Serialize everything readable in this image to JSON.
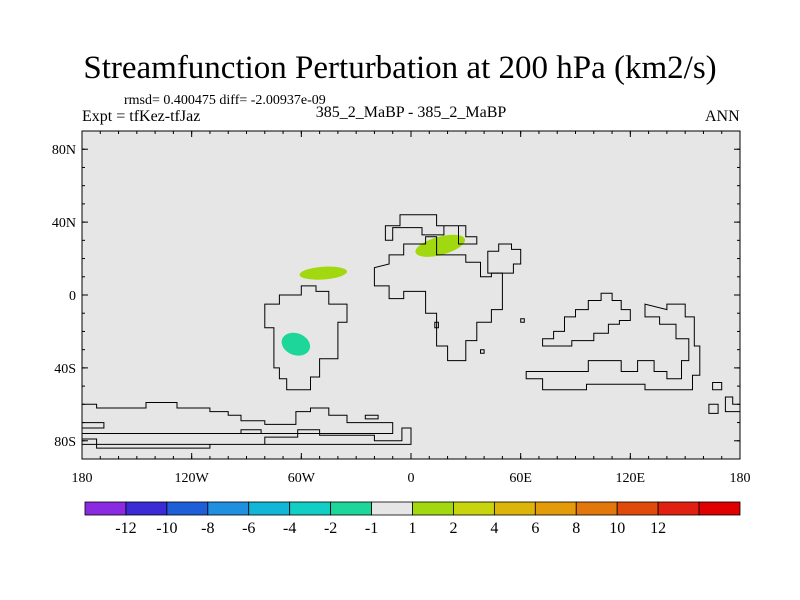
{
  "chart_data": {
    "type": "heatmap",
    "title": "Streamfunction Perturbation at 200 hPa (km2/s)",
    "stats_text": "rmsd= 0.400475 diff= -2.00937e-09",
    "left_label": "Expt = tfKez-tfJaz",
    "center_label": "385_2_MaBP - 385_2_MaBP",
    "right_label": "ANN",
    "x_axis": {
      "min": -180,
      "max": 180,
      "ticks": [
        {
          "value": -180,
          "label": "180"
        },
        {
          "value": -120,
          "label": "120W"
        },
        {
          "value": -60,
          "label": "60W"
        },
        {
          "value": 0,
          "label": "0"
        },
        {
          "value": 60,
          "label": "60E"
        },
        {
          "value": 120,
          "label": "120E"
        },
        {
          "value": 180,
          "label": "180"
        }
      ]
    },
    "y_axis": {
      "min": -90,
      "max": 90,
      "ticks": [
        {
          "value": 80,
          "label": "80N"
        },
        {
          "value": 40,
          "label": "40N"
        },
        {
          "value": 0,
          "label": "0"
        },
        {
          "value": -40,
          "label": "40S"
        },
        {
          "value": -80,
          "label": "80S"
        }
      ]
    },
    "background_color": "#e6e6e6",
    "colorbar": {
      "colors": [
        "#8a2be2",
        "#3a2bd6",
        "#1e5fd8",
        "#1f8fe0",
        "#12b6d6",
        "#12cfc6",
        "#1cd69a",
        "#e6e6e6",
        "#a2d80f",
        "#c8d40d",
        "#dcb40a",
        "#e49b0a",
        "#e2780b",
        "#e04a0b",
        "#e02010",
        "#e00000"
      ],
      "labels": [
        "-12",
        "-10",
        "-8",
        "-6",
        "-4",
        "-2",
        "-1",
        "1",
        "2",
        "4",
        "6",
        "8",
        "10",
        "12"
      ]
    },
    "anomalies": [
      {
        "lon": 16,
        "lat": 27,
        "rlon": 14,
        "rlat": 5,
        "angle": -15,
        "color": "#a2d80f"
      },
      {
        "lon": -48,
        "lat": 12,
        "rlon": 13,
        "rlat": 3.5,
        "angle": -4,
        "color": "#a2d80f"
      },
      {
        "lon": -63,
        "lat": -27,
        "rlon": 8,
        "rlat": 6,
        "angle": 20,
        "color": "#1cd69a"
      }
    ],
    "coastlines": [
      [
        [
          -180,
          -60
        ],
        [
          -172,
          -60
        ],
        [
          -172,
          -62
        ],
        [
          -145,
          -62
        ],
        [
          -145,
          -59
        ],
        [
          -128,
          -59
        ],
        [
          -128,
          -62
        ],
        [
          -110,
          -62
        ],
        [
          -110,
          -64
        ],
        [
          -100,
          -64
        ],
        [
          -100,
          -66
        ],
        [
          -93,
          -66
        ],
        [
          -93,
          -69
        ],
        [
          -80,
          -69
        ],
        [
          -80,
          -71
        ],
        [
          -63,
          -71
        ],
        [
          -63,
          -64
        ],
        [
          -55,
          -64
        ],
        [
          -55,
          -62
        ],
        [
          -45,
          -62
        ],
        [
          -45,
          -66
        ],
        [
          -35,
          -66
        ],
        [
          -35,
          -70
        ],
        [
          -10,
          -70
        ],
        [
          -10,
          -76
        ],
        [
          -180,
          -76
        ]
      ],
      [
        [
          -180,
          -79
        ],
        [
          -172,
          -79
        ],
        [
          -172,
          -84
        ],
        [
          -110,
          -84
        ],
        [
          -110,
          -82
        ],
        [
          -80,
          -82
        ],
        [
          -80,
          -78
        ],
        [
          -62,
          -78
        ],
        [
          -62,
          -74
        ],
        [
          -50,
          -74
        ],
        [
          -50,
          -77
        ],
        [
          -20,
          -77
        ],
        [
          -20,
          -80
        ],
        [
          -5,
          -80
        ],
        [
          -5,
          -73
        ],
        [
          0,
          -73
        ],
        [
          0,
          -82
        ],
        [
          -180,
          -82
        ]
      ],
      [
        [
          -45,
          -5
        ],
        [
          -35,
          -5
        ],
        [
          -35,
          -15
        ],
        [
          -40,
          -15
        ],
        [
          -40,
          -35
        ],
        [
          -50,
          -35
        ],
        [
          -50,
          -45
        ],
        [
          -55,
          -45
        ],
        [
          -55,
          -52
        ],
        [
          -68,
          -52
        ],
        [
          -68,
          -46
        ],
        [
          -72,
          -46
        ],
        [
          -72,
          -40
        ],
        [
          -75,
          -40
        ],
        [
          -75,
          -18
        ],
        [
          -80,
          -18
        ],
        [
          -80,
          -5
        ],
        [
          -72,
          -5
        ],
        [
          -72,
          0
        ],
        [
          -60,
          0
        ],
        [
          -60,
          5
        ],
        [
          -52,
          5
        ],
        [
          -52,
          2
        ],
        [
          -45,
          2
        ]
      ],
      [
        [
          -14,
          38
        ],
        [
          -6,
          38
        ],
        [
          -6,
          44
        ],
        [
          14,
          44
        ],
        [
          14,
          38
        ],
        [
          30,
          38
        ],
        [
          30,
          32
        ],
        [
          36,
          32
        ],
        [
          36,
          28
        ],
        [
          26,
          28
        ],
        [
          26,
          38
        ],
        [
          18,
          38
        ],
        [
          18,
          33
        ],
        [
          6,
          33
        ],
        [
          6,
          37
        ],
        [
          -10,
          37
        ],
        [
          -10,
          30
        ],
        [
          -14,
          30
        ]
      ],
      [
        [
          -20,
          15
        ],
        [
          -20,
          5
        ],
        [
          -12,
          5
        ],
        [
          -12,
          -2
        ],
        [
          -4,
          -2
        ],
        [
          -4,
          2
        ],
        [
          8,
          2
        ],
        [
          8,
          -10
        ],
        [
          14,
          -10
        ],
        [
          14,
          -28
        ],
        [
          20,
          -28
        ],
        [
          20,
          -36
        ],
        [
          30,
          -36
        ],
        [
          30,
          -25
        ],
        [
          36,
          -25
        ],
        [
          36,
          -15
        ],
        [
          44,
          -15
        ],
        [
          44,
          -8
        ],
        [
          50,
          -8
        ],
        [
          50,
          12
        ],
        [
          44,
          12
        ],
        [
          44,
          10
        ],
        [
          38,
          10
        ],
        [
          38,
          18
        ],
        [
          30,
          18
        ],
        [
          30,
          22
        ],
        [
          14,
          22
        ],
        [
          14,
          32
        ],
        [
          8,
          32
        ],
        [
          8,
          28
        ],
        [
          -4,
          28
        ],
        [
          -4,
          22
        ],
        [
          -12,
          22
        ],
        [
          -12,
          17
        ]
      ],
      [
        [
          42,
          12
        ],
        [
          56,
          12
        ],
        [
          56,
          17
        ],
        [
          60,
          17
        ],
        [
          60,
          25
        ],
        [
          55,
          25
        ],
        [
          55,
          28
        ],
        [
          48,
          28
        ],
        [
          48,
          24
        ],
        [
          42,
          24
        ]
      ],
      [
        [
          72,
          -28
        ],
        [
          72,
          -24
        ],
        [
          78,
          -24
        ],
        [
          78,
          -20
        ],
        [
          84,
          -20
        ],
        [
          84,
          -12
        ],
        [
          90,
          -12
        ],
        [
          90,
          -8
        ],
        [
          97,
          -8
        ],
        [
          97,
          -3
        ],
        [
          104,
          -3
        ],
        [
          104,
          1
        ],
        [
          110,
          1
        ],
        [
          110,
          -3
        ],
        [
          115,
          -3
        ],
        [
          115,
          -8
        ],
        [
          120,
          -8
        ],
        [
          120,
          -14
        ],
        [
          114,
          -14
        ],
        [
          114,
          -16
        ],
        [
          108,
          -16
        ],
        [
          108,
          -21
        ],
        [
          100,
          -21
        ],
        [
          100,
          -25
        ],
        [
          88,
          -25
        ],
        [
          88,
          -28
        ]
      ],
      [
        [
          128,
          -5
        ],
        [
          128,
          -12
        ],
        [
          136,
          -12
        ],
        [
          136,
          -16
        ],
        [
          145,
          -16
        ],
        [
          145,
          -24
        ],
        [
          152,
          -24
        ],
        [
          152,
          -36
        ],
        [
          148,
          -36
        ],
        [
          148,
          -46
        ],
        [
          140,
          -46
        ],
        [
          140,
          -42
        ],
        [
          133,
          -42
        ],
        [
          133,
          -36
        ],
        [
          124,
          -36
        ],
        [
          124,
          -42
        ],
        [
          115,
          -42
        ],
        [
          115,
          -36
        ],
        [
          97,
          -36
        ],
        [
          97,
          -42
        ],
        [
          63,
          -42
        ],
        [
          63,
          -46
        ],
        [
          72,
          -46
        ],
        [
          72,
          -52
        ],
        [
          96,
          -52
        ],
        [
          96,
          -49
        ],
        [
          128,
          -49
        ],
        [
          128,
          -52
        ],
        [
          154,
          -52
        ],
        [
          154,
          -44
        ],
        [
          158,
          -44
        ],
        [
          158,
          -28
        ],
        [
          155,
          -28
        ],
        [
          155,
          -12
        ],
        [
          150,
          -12
        ],
        [
          150,
          -5
        ],
        [
          140,
          -5
        ],
        [
          140,
          -8
        ]
      ],
      [
        [
          -93,
          -74
        ],
        [
          -82,
          -74
        ],
        [
          -82,
          -76
        ],
        [
          -93,
          -76
        ]
      ],
      [
        [
          -25,
          -66
        ],
        [
          -18,
          -66
        ],
        [
          -18,
          -68
        ],
        [
          -25,
          -68
        ]
      ],
      [
        [
          -180,
          -70
        ],
        [
          -168,
          -70
        ],
        [
          -168,
          -73
        ],
        [
          -180,
          -73
        ]
      ],
      [
        [
          163,
          -60
        ],
        [
          168,
          -60
        ],
        [
          168,
          -65
        ],
        [
          163,
          -65
        ]
      ],
      [
        [
          172,
          -56
        ],
        [
          176,
          -56
        ],
        [
          176,
          -60
        ],
        [
          180,
          -60
        ],
        [
          180,
          -64
        ],
        [
          172,
          -64
        ]
      ],
      [
        [
          165,
          -48
        ],
        [
          170,
          -48
        ],
        [
          170,
          -52
        ],
        [
          165,
          -52
        ]
      ],
      [
        [
          60,
          -13
        ],
        [
          62,
          -13
        ],
        [
          62,
          -15
        ],
        [
          60,
          -15
        ]
      ],
      [
        [
          38,
          -30
        ],
        [
          40,
          -30
        ],
        [
          40,
          -32
        ],
        [
          38,
          -32
        ]
      ],
      [
        [
          13,
          -15
        ],
        [
          15,
          -15
        ],
        [
          15,
          -18
        ],
        [
          13,
          -18
        ]
      ]
    ]
  }
}
